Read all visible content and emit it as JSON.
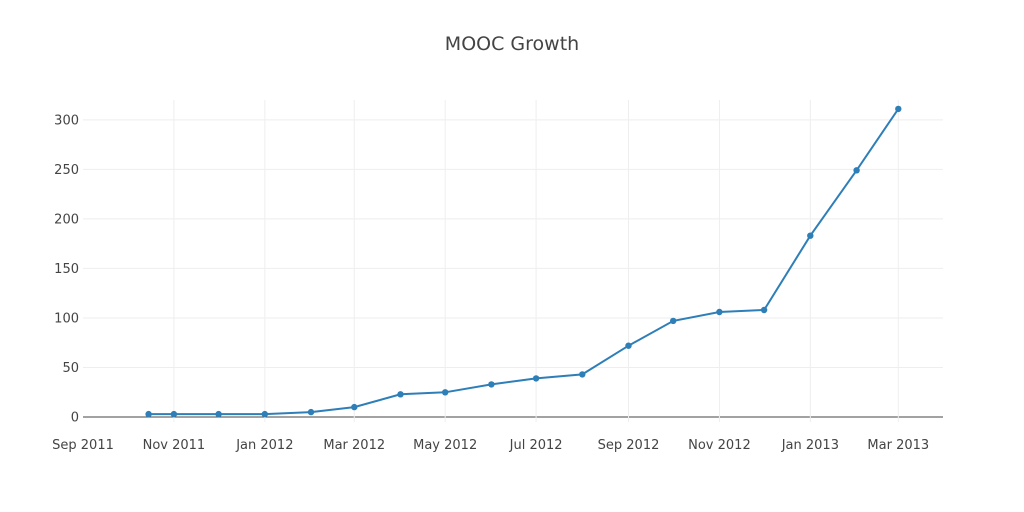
{
  "chart_data": {
    "type": "line",
    "title": "MOOC Growth",
    "xlabel": "",
    "ylabel": "",
    "x_ticks": [
      "Sep 2011",
      "Nov 2011",
      "Jan 2012",
      "Mar 2012",
      "May 2012",
      "Jul 2012",
      "Sep 2012",
      "Nov 2012",
      "Jan 2013",
      "Mar 2013"
    ],
    "x_tick_dates": [
      "2011-09-01",
      "2011-11-01",
      "2012-01-01",
      "2012-03-01",
      "2012-05-01",
      "2012-07-01",
      "2012-09-01",
      "2012-11-01",
      "2013-01-01",
      "2013-03-01"
    ],
    "xlim": [
      "2011-09-01",
      "2013-03-31"
    ],
    "y_ticks": [
      0,
      50,
      100,
      150,
      200,
      250,
      300
    ],
    "ylim": [
      -5,
      320
    ],
    "grid": true,
    "series": [
      {
        "x": [
          "2011-10-15",
          "2011-11-01",
          "2011-12-01",
          "2012-01-01",
          "2012-02-01",
          "2012-03-01",
          "2012-04-01",
          "2012-05-01",
          "2012-06-01",
          "2012-07-01",
          "2012-08-01",
          "2012-09-01",
          "2012-10-01",
          "2012-11-01",
          "2012-12-01",
          "2013-01-01",
          "2013-02-01",
          "2013-03-01"
        ],
        "values": [
          3,
          3,
          3,
          3,
          5,
          10,
          23,
          25,
          33,
          39,
          43,
          72,
          97,
          106,
          108,
          183,
          249,
          311
        ]
      }
    ],
    "line_color": "#2e7eb8"
  }
}
